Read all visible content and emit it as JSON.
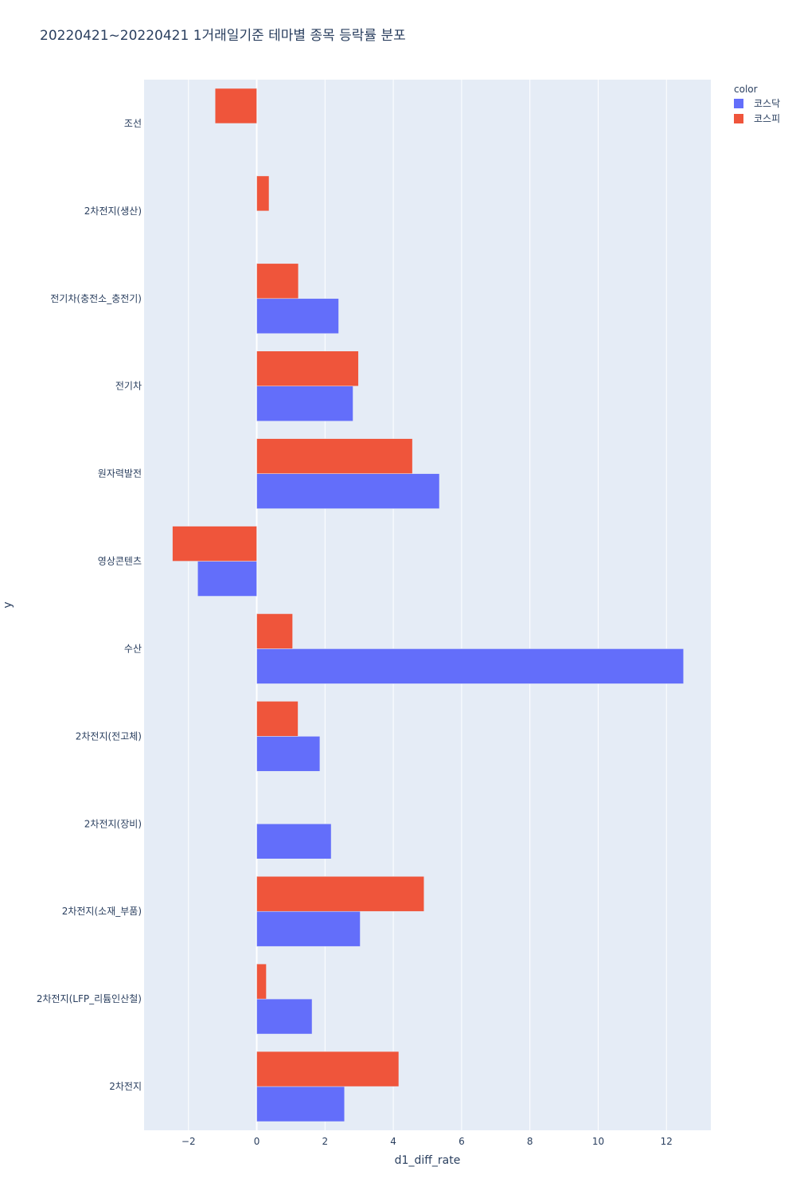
{
  "chart_data": {
    "type": "bar",
    "orientation": "horizontal",
    "barmode": "group",
    "title": "20220421~20220421 1거래일기준 테마별 종목 등락률 분포",
    "xlabel": "d1_diff_rate",
    "ylabel": "y",
    "xlim": [
      -3.3,
      13.3
    ],
    "xticks": [
      -2,
      0,
      2,
      4,
      6,
      8,
      10,
      12
    ],
    "xtick_labels": [
      "−2",
      "0",
      "2",
      "4",
      "6",
      "8",
      "10",
      "12"
    ],
    "grid": true,
    "legend": {
      "title": "color",
      "position": "top-right",
      "entries": [
        {
          "name": "코스닥",
          "color": "#636efa"
        },
        {
          "name": "코스피",
          "color": "#ef553b"
        }
      ]
    },
    "categories": [
      "조선",
      "2차전지(생산)",
      "전기차(충전소_충전기)",
      "전기차",
      "원자력발전",
      "영상콘텐츠",
      "수산",
      "2차전지(전고체)",
      "2차전지(장비)",
      "2차전지(소재_부품)",
      "2차전지(LFP_리튬인산철)",
      "2차전지"
    ],
    "series": [
      {
        "name": "코스닥",
        "color": "#636efa",
        "values": [
          null,
          null,
          2.4,
          2.82,
          5.35,
          -1.73,
          12.5,
          1.85,
          2.18,
          3.03,
          1.62,
          2.57
        ]
      },
      {
        "name": "코스피",
        "color": "#ef553b",
        "values": [
          -1.22,
          0.36,
          1.22,
          2.98,
          4.56,
          -2.47,
          1.05,
          1.21,
          null,
          4.9,
          0.28,
          4.16
        ]
      }
    ]
  }
}
